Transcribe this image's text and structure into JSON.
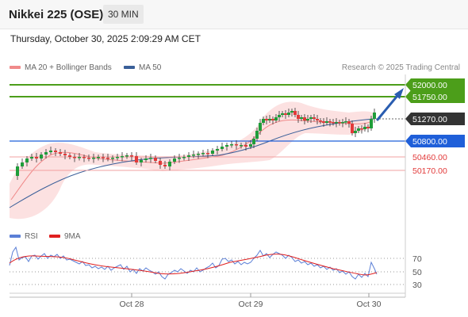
{
  "header": {
    "title": "Nikkei 225 (OSE)",
    "interval": "30 MIN"
  },
  "timestamp": "Thursday, October 30, 2025 2:09:29 AM CET",
  "legend": {
    "ma20_bb": "MA 20 + Bollinger Bands",
    "ma50": "MA 50",
    "credit": "Research © 2025 Trading Central"
  },
  "levels": [
    {
      "label": "52000.00",
      "value": 52000,
      "style": "green-box"
    },
    {
      "label": "51750.00",
      "value": 51750,
      "style": "green-box"
    },
    {
      "label": "51270.00",
      "value": 51270,
      "style": "dark-box"
    },
    {
      "label": "50800.00",
      "value": 50800,
      "style": "blue-box"
    },
    {
      "label": "50460.00",
      "value": 50460,
      "style": "red-text"
    },
    {
      "label": "50170.00",
      "value": 50170,
      "style": "red-text"
    }
  ],
  "rsi_panel": {
    "rsi_label": "RSI",
    "ma_label": "9MA",
    "ticks": [
      "70",
      "50",
      "30"
    ]
  },
  "x_axis": [
    "Oct 28",
    "Oct 29",
    "Oct 30"
  ],
  "colors": {
    "green": "#4c9e1a",
    "blue": "#1f5fd9",
    "red": "#e23a3a",
    "ma50": "#3a5f99",
    "bollinger": "#f7c5c5",
    "rsi": "#5b7fd6",
    "rsi_ma": "#e02020"
  },
  "chart_data": {
    "type": "line",
    "ylim": [
      49200,
      52100
    ],
    "x": [
      "Oct 28",
      "Oct 29",
      "Oct 30"
    ],
    "series": [
      {
        "name": "MA 50",
        "values": [
          49950,
          50550,
          51200
        ]
      },
      {
        "name": "RSI",
        "values": [
          56,
          48,
          60
        ]
      }
    ]
  }
}
